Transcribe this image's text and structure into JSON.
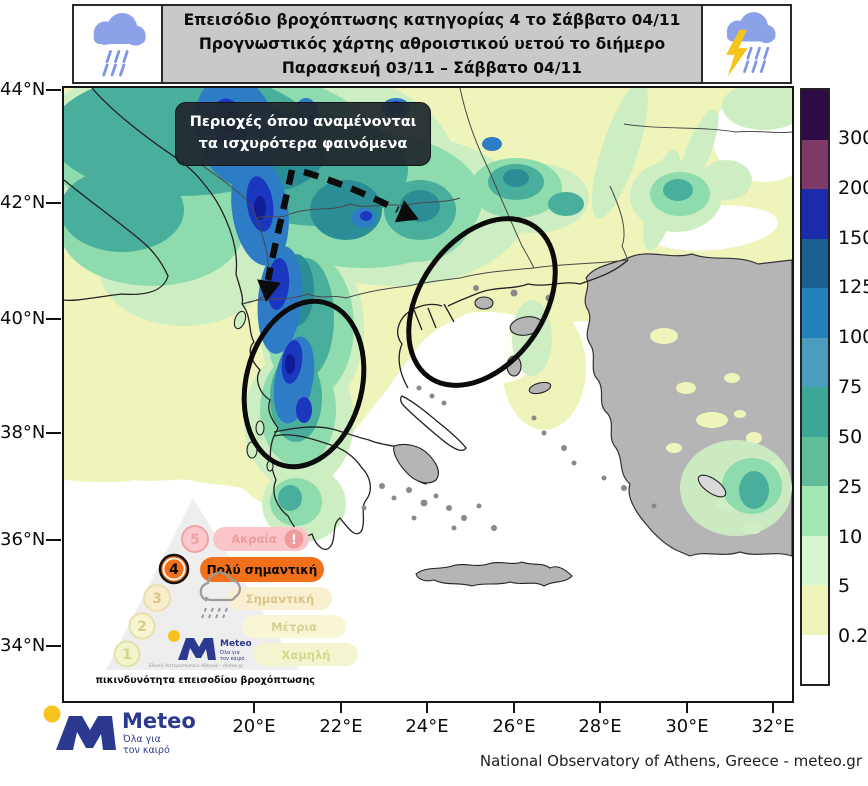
{
  "header": {
    "line1": "Επεισόδιο βροχόπτωσης κατηγορίας 4 το Σάββατο 04/11",
    "line2": "Προγνωστικός χάρτης αθροιστικού υετού το διήμερο",
    "line3": "Παρασκευή 03/11 – Σάββατο 04/11"
  },
  "annotation": {
    "line1": "Περιοχές όπου αναμένονται",
    "line2": "τα ισχυρότερα φαινόμενα"
  },
  "axes": {
    "lat_labels": [
      "44°N",
      "42°N",
      "40°N",
      "38°N",
      "36°N",
      "34°N"
    ],
    "lon_labels": [
      "20°E",
      "22°E",
      "24°E",
      "26°E",
      "28°E",
      "30°E",
      "32°E"
    ]
  },
  "colorbar": {
    "labels": [
      "300",
      "200",
      "150",
      "125",
      "100",
      "75",
      "50",
      "25",
      "10",
      "5",
      "0.2"
    ],
    "colors": [
      "#2d0b45",
      "#7d3a66",
      "#1b2cab",
      "#1a6090",
      "#2181b8",
      "#4b9cbe",
      "#3ca794",
      "#60bd98",
      "#a3e8b0",
      "#d6f6d0",
      "#eff4bb",
      "#ffffff"
    ]
  },
  "risk_pyramid": {
    "caption": "Επικινδυνότητα επεισοδίου βροχόπτωσης",
    "levels": [
      {
        "num": "5",
        "label": "Ακραία",
        "badge": "!"
      },
      {
        "num": "4",
        "label": "Πολύ σημαντική"
      },
      {
        "num": "3",
        "label": "Σημαντική"
      },
      {
        "num": "2",
        "label": "Μέτρια"
      },
      {
        "num": "1",
        "label": "Χαμηλή"
      }
    ],
    "mini_logo": {
      "brand": "Meteo",
      "tagline1": "Όλα για",
      "tagline2": "τον καιρό",
      "subtitle": "Εθνικό Αστεροσκοπείο Αθηνών - meteo.gr"
    }
  },
  "logo": {
    "brand": "Meteo",
    "tagline1": "Όλα για",
    "tagline2": "τον καιρό"
  },
  "attribution": "National Observatory of Athens, Greece - meteo.gr"
}
